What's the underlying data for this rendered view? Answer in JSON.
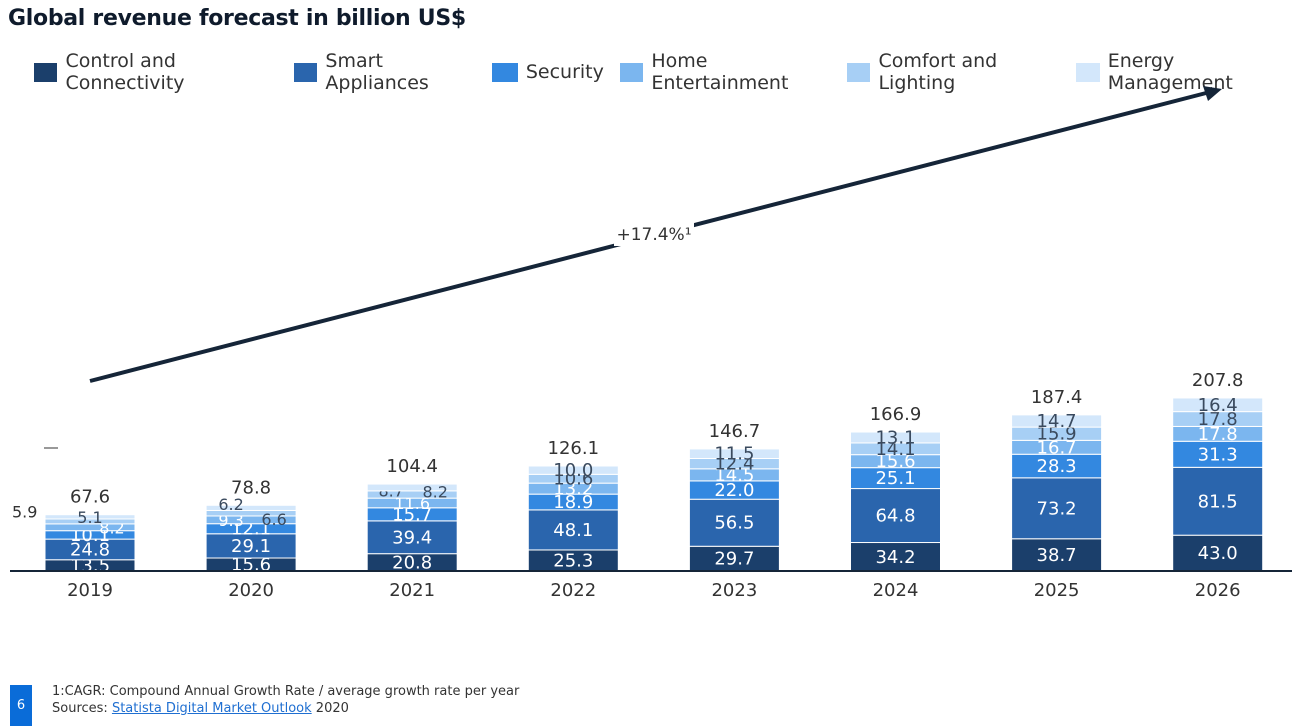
{
  "title": "Global revenue forecast in billion US$",
  "legend": [
    {
      "label": "Control and Connectivity",
      "color": "#1b3f6b"
    },
    {
      "label": "Smart Appliances",
      "color": "#2a65ad"
    },
    {
      "label": "Security",
      "color": "#3388e0"
    },
    {
      "label": "Home Entertainment",
      "color": "#7bb6ef"
    },
    {
      "label": "Comfort and Lighting",
      "color": "#a7cff5"
    },
    {
      "label": "Energy Management",
      "color": "#d3e7fb"
    }
  ],
  "chart_data": {
    "type": "bar",
    "stacked": true,
    "categories": [
      "2019",
      "2020",
      "2021",
      "2022",
      "2023",
      "2024",
      "2025",
      "2026"
    ],
    "series": [
      {
        "name": "Control and Connectivity",
        "values": [
          13.5,
          15.6,
          20.8,
          25.3,
          29.7,
          34.2,
          38.7,
          43.0
        ]
      },
      {
        "name": "Smart Appliances",
        "values": [
          24.8,
          29.1,
          39.4,
          48.1,
          56.5,
          64.8,
          73.2,
          81.5
        ]
      },
      {
        "name": "Security",
        "values": [
          10.1,
          12.1,
          15.7,
          18.9,
          22.0,
          25.1,
          28.3,
          31.3
        ]
      },
      {
        "name": "Home Entertainment",
        "values": [
          8.2,
          9.3,
          11.6,
          13.2,
          14.5,
          15.6,
          16.7,
          17.8
        ]
      },
      {
        "name": "Comfort and Lighting",
        "values": [
          5.9,
          6.6,
          8.7,
          10.6,
          12.4,
          14.1,
          15.9,
          17.8
        ]
      },
      {
        "name": "Energy Management",
        "values": [
          5.1,
          6.2,
          8.2,
          10.0,
          11.5,
          13.1,
          14.7,
          16.4
        ]
      }
    ],
    "value_labels": [
      [
        "13.5",
        "15.6",
        "20.8",
        "25.3",
        "29.7",
        "34.2",
        "38.7",
        "43.0"
      ],
      [
        "24.8",
        "29.1",
        "39.4",
        "48.1",
        "56.5",
        "64.8",
        "73.2",
        "81.5"
      ],
      [
        "10.1",
        "12.1",
        "15.7",
        "18.9",
        "22.0",
        "25.1",
        "28.3",
        "31.3"
      ],
      [
        "8.2",
        "9.3",
        "11.6",
        "13.2",
        "14.5",
        "15.6",
        "16.7",
        "17.8"
      ],
      [
        "5.9",
        "6.6",
        "8.7",
        "10.6",
        "12.4",
        "14.1",
        "15.9",
        "17.8"
      ],
      [
        "5.1",
        "6.2",
        "8.2",
        "10.0",
        "11.5",
        "13.1",
        "14.7",
        "16.4"
      ]
    ],
    "totals": [
      "67.6",
      "78.8",
      "104.4",
      "126.1",
      "146.7",
      "166.9",
      "187.4",
      "207.8"
    ],
    "ylim": [
      0,
      210
    ],
    "grid": false,
    "legend_position": "top",
    "annotation": "+17.4%¹"
  },
  "footer": {
    "note": "1:CAGR: Compound Annual Growth Rate / average growth rate per year",
    "sources_prefix": "Sources: ",
    "sources_link": "Statista Digital Market Outlook",
    "sources_suffix": " 2020",
    "page_number": "6"
  }
}
